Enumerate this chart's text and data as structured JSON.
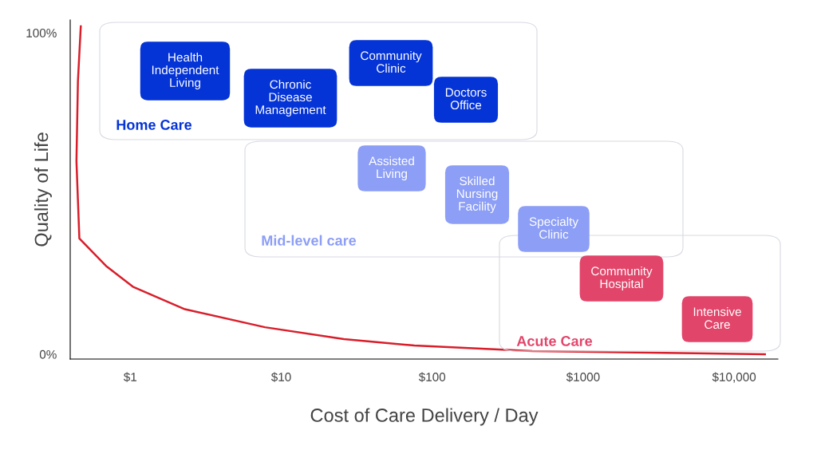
{
  "chart_data": {
    "type": "line",
    "xlabel": "Cost of Care Delivery / Day",
    "ylabel": "Quality of Life",
    "x": [
      0.47,
      0.45,
      0.44,
      0.46,
      0.69,
      1.04,
      2.3,
      7.8,
      26,
      76,
      460,
      16000
    ],
    "series": [
      {
        "color": "#d81e2a",
        "values": [
          102,
          85,
          60,
          36,
          27.5,
          21,
          14,
          8.4,
          4.7,
          2.7,
          1.0,
          0
        ]
      }
    ],
    "log": "x",
    "xlim": [
      0.4,
      19500
    ],
    "ylim": [
      -1.5,
      104
    ],
    "xticks": [
      {
        "value": 1,
        "label": "$1"
      },
      {
        "value": 10,
        "label": "$10"
      },
      {
        "value": 100,
        "label": "$100"
      },
      {
        "value": 1000,
        "label": "$1000"
      },
      {
        "value": 10000,
        "label": "$10,000"
      }
    ],
    "yticks": [
      {
        "value": 0,
        "label": "0%"
      },
      {
        "value": 100,
        "label": "100%"
      }
    ],
    "marker": "none",
    "line_style": "solid",
    "annotations": [
      "Health\nIndependent\nLiving",
      "Chronic\nDisease\nManagement",
      "Community\nClinic",
      "Doctors\nOffice",
      "Home Care",
      "Assisted\nLiving",
      "Skilled\nNursing\nFacility",
      "Specialty\nClinic",
      "Mid-level care",
      "Community\nHospital",
      "Intensive\nCare",
      "Acute Care"
    ]
  }
}
